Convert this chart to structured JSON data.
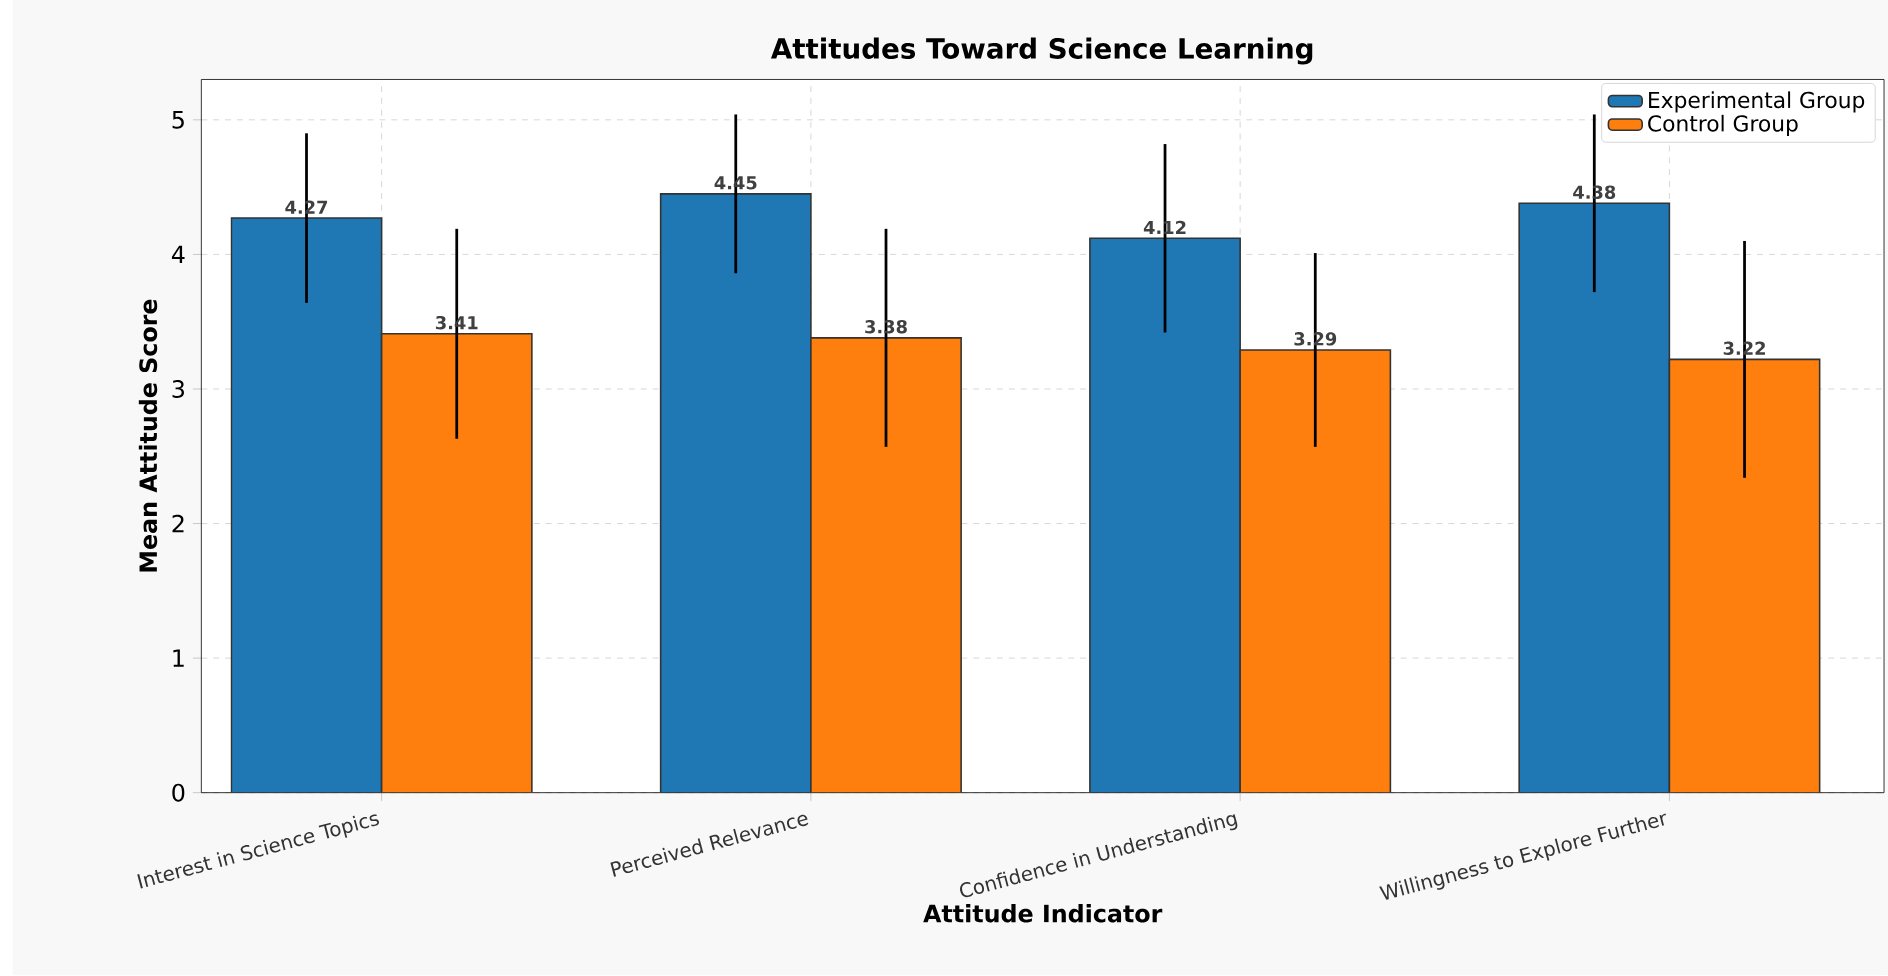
{
  "chart_data": {
    "type": "bar",
    "title": "Attitudes Toward Science Learning",
    "xlabel": "Attitude Indicator",
    "ylabel": "Mean Attitude Score",
    "categories": [
      "Interest in Science Topics",
      "Perceived Relevance",
      "Confidence in Understanding",
      "Willingness to Explore Further"
    ],
    "series": [
      {
        "name": "Experimental Group",
        "color": "#1f77b4",
        "values": [
          4.27,
          4.45,
          4.12,
          4.38
        ],
        "errors": [
          0.63,
          0.59,
          0.7,
          0.66
        ]
      },
      {
        "name": "Control Group",
        "color": "#ff7f0e",
        "values": [
          3.41,
          3.38,
          3.29,
          3.22
        ],
        "errors": [
          0.78,
          0.81,
          0.72,
          0.88
        ]
      }
    ],
    "ylim": [
      0,
      5.3
    ],
    "yticks": [
      0,
      1,
      2,
      3,
      4,
      5
    ],
    "grid": true,
    "legend": "top right",
    "data_labels": true
  }
}
